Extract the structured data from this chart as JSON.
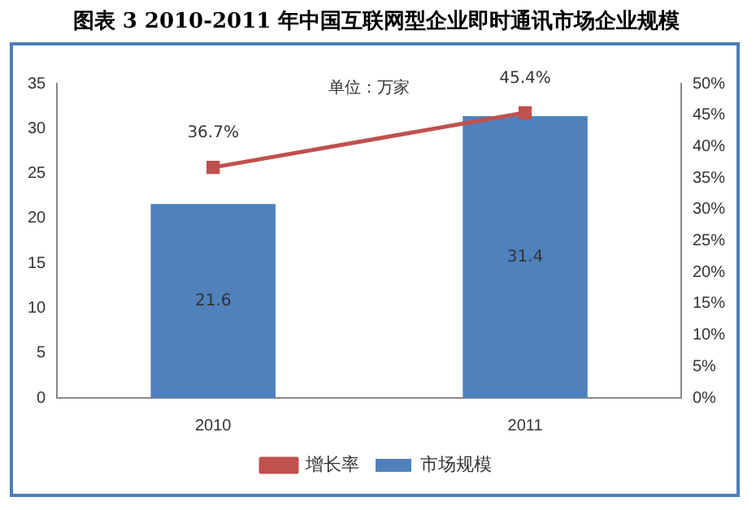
{
  "chart_data": {
    "type": "bar",
    "title": "图表 3 2010-2011 年中国互联网型企业即时通讯市场企业规模",
    "annotations": [
      "单位：万家"
    ],
    "categories": [
      "2010",
      "2011"
    ],
    "series": [
      {
        "name": "市场规模",
        "color": "#4f81bd",
        "values": [
          21.6,
          31.4
        ],
        "value_labels": [
          "21.6",
          "31.4"
        ]
      },
      {
        "name": "增长率",
        "type": "line",
        "axis": "y2",
        "color": "#c0504d",
        "values": [
          36.7,
          45.4
        ],
        "value_labels": [
          "36.7%",
          "45.4%"
        ],
        "marker": "square"
      }
    ],
    "ylim": [
      0,
      35
    ],
    "yticks": [
      0,
      5,
      10,
      15,
      20,
      25,
      30,
      35
    ],
    "y2lim": [
      0,
      50
    ],
    "y2ticks": [
      {
        "value": 0,
        "label": "0%"
      },
      {
        "value": 5,
        "label": "5%"
      },
      {
        "value": 10,
        "label": "10%"
      },
      {
        "value": 15,
        "label": "15%"
      },
      {
        "value": 20,
        "label": "20%"
      },
      {
        "value": 25,
        "label": "25%"
      },
      {
        "value": 30,
        "label": "30%"
      },
      {
        "value": 35,
        "label": "35%"
      },
      {
        "value": 40,
        "label": "40%"
      },
      {
        "value": 45,
        "label": "45%"
      },
      {
        "value": 50,
        "label": "50%"
      }
    ],
    "grid": false,
    "legend": "bottom"
  }
}
